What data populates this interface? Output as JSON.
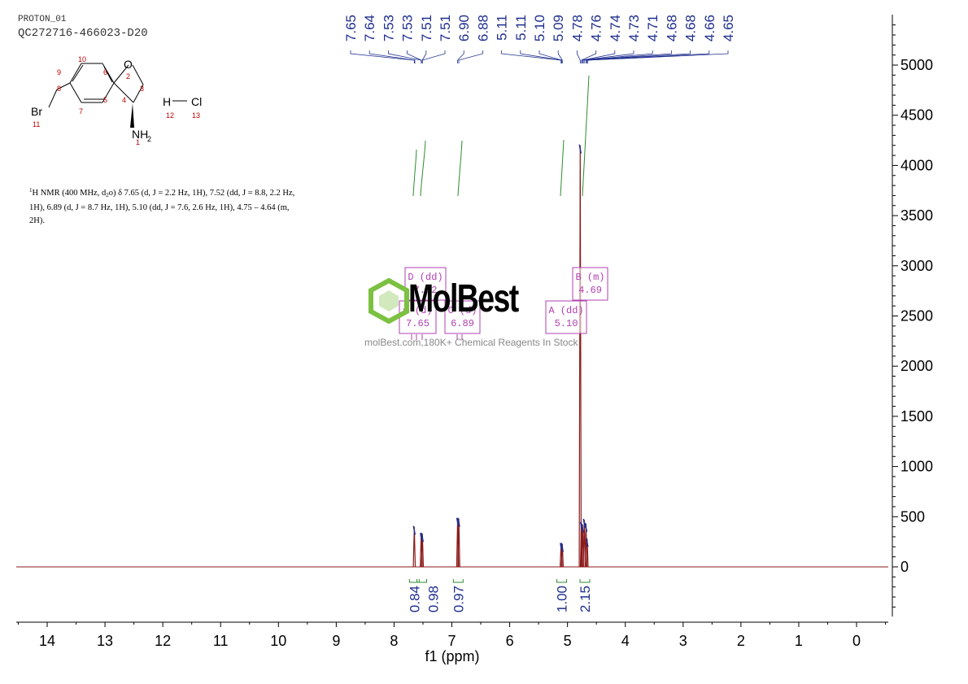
{
  "header": {
    "experiment": "PROTON_01",
    "sample_id": "QC272716-466023-D20"
  },
  "structure": {
    "atoms": {
      "O": "O",
      "Br": "Br",
      "N": "NH",
      "N_sub": "2",
      "H": "H",
      "Cl": "Cl"
    },
    "atom_numbers": [
      "10",
      "9",
      "8",
      "7",
      "6",
      "5",
      "4",
      "3",
      "2",
      "11",
      "1",
      "12",
      "13"
    ]
  },
  "nmr_description": {
    "nucleus_sup": "1",
    "text_1": "H NMR (400 MHz, d",
    "solvent_sub": "2",
    "text_2": "o) δ 7.65 (d, J = 2.2 Hz, 1H), 7.52 (dd, J = 8.8, 2.2 Hz, 1H), 6.89 (d, J = 8.7 Hz, 1H), 5.10 (dd, J = 7.6, 2.6 Hz, 1H), 4.75 – 4.64 (m, 2H)."
  },
  "watermark": {
    "brand": "MolBest",
    "tagline": "molBest.com,180K+ Chemical Reagents In Stock."
  },
  "colors": {
    "spectrum": "#8b1a1a",
    "peak_labels": "#1f2f8f",
    "integral": "#2e8b2e",
    "multiplet_box": "#b040b0",
    "axis": "#000000"
  },
  "chart_data": {
    "type": "line",
    "xlabel": "f1 (ppm)",
    "x_reversed": true,
    "xlim": [
      14.5,
      -0.5
    ],
    "x_ticks": [
      14,
      13,
      12,
      11,
      10,
      9,
      8,
      7,
      6,
      5,
      4,
      3,
      2,
      1,
      0
    ],
    "ylim": [
      -500,
      5500
    ],
    "y_ticks": [
      0,
      500,
      1000,
      1500,
      2000,
      2500,
      3000,
      3500,
      4000,
      4500,
      5000
    ],
    "peaks": [
      {
        "ppm": 7.65,
        "height": 400
      },
      {
        "ppm": 7.53,
        "height": 330
      },
      {
        "ppm": 7.51,
        "height": 330
      },
      {
        "ppm": 6.9,
        "height": 480
      },
      {
        "ppm": 6.88,
        "height": 480
      },
      {
        "ppm": 5.11,
        "height": 230
      },
      {
        "ppm": 5.09,
        "height": 230
      },
      {
        "ppm": 4.78,
        "height": 4200
      },
      {
        "ppm": 4.76,
        "height": 440
      },
      {
        "ppm": 4.74,
        "height": 420
      },
      {
        "ppm": 4.71,
        "height": 470
      },
      {
        "ppm": 4.68,
        "height": 430
      },
      {
        "ppm": 4.66,
        "height": 280
      }
    ],
    "peak_labels": [
      "7.65",
      "7.64",
      "7.53",
      "7.53",
      "7.51",
      "7.51",
      "6.90",
      "6.88",
      "5.11",
      "5.11",
      "5.10",
      "5.09",
      "4.78",
      "4.76",
      "4.74",
      "4.73",
      "4.71",
      "4.68",
      "4.68",
      "4.66",
      "4.65"
    ],
    "integrals": [
      {
        "ppm": 7.65,
        "value": "0.84"
      },
      {
        "ppm": 7.52,
        "value": "0.98"
      },
      {
        "ppm": 6.89,
        "value": "0.97"
      },
      {
        "ppm": 5.1,
        "value": "1.00"
      },
      {
        "ppm": 4.7,
        "value": "2.15"
      }
    ],
    "multiplets": [
      {
        "label": "D (dd)",
        "shift": "7.52"
      },
      {
        "label": "C (d)",
        "shift": "7.65"
      },
      {
        "label": "C (d)",
        "shift": "6.89"
      },
      {
        "label": "A (dd)",
        "shift": "5.10"
      },
      {
        "label": "B (m)",
        "shift": "4.69"
      }
    ]
  }
}
